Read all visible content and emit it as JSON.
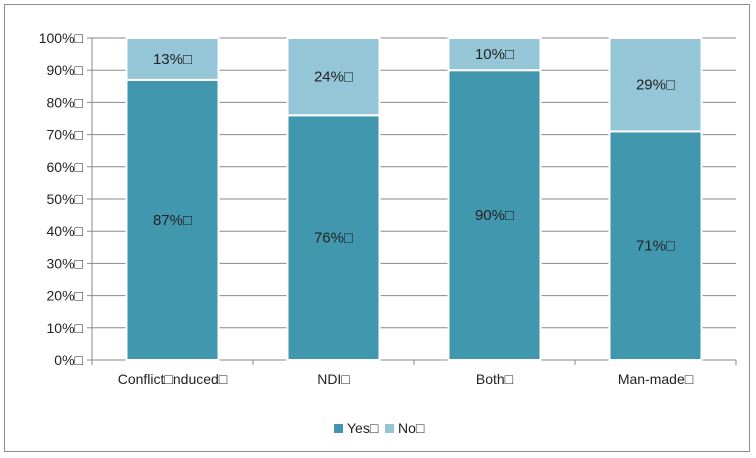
{
  "chart_data": {
    "type": "bar",
    "stacked": true,
    "normalized_percent": true,
    "categories": [
      "Conflict□nduced□",
      "NDI□",
      "Both□",
      "Man-made□"
    ],
    "series": [
      {
        "name": "Yes□",
        "values": [
          87,
          76,
          90,
          71
        ],
        "labels": [
          "87%□",
          "76%□",
          "90%□",
          "71%□"
        ],
        "color": "#4197ae"
      },
      {
        "name": "No□",
        "values": [
          13,
          24,
          10,
          29
        ],
        "labels": [
          "13%□",
          "24%□",
          "10%□",
          "29%□"
        ],
        "color": "#95c6d8"
      }
    ],
    "y_ticks": [
      "0%□",
      "10%□",
      "20%□",
      "30%□",
      "40%□",
      "50%□",
      "60%□",
      "70%□",
      "80%□",
      "90%□",
      "100%□"
    ],
    "ylim": [
      0,
      100
    ],
    "grid": true,
    "legend_position": "bottom",
    "title": "",
    "xlabel": "",
    "ylabel": ""
  }
}
